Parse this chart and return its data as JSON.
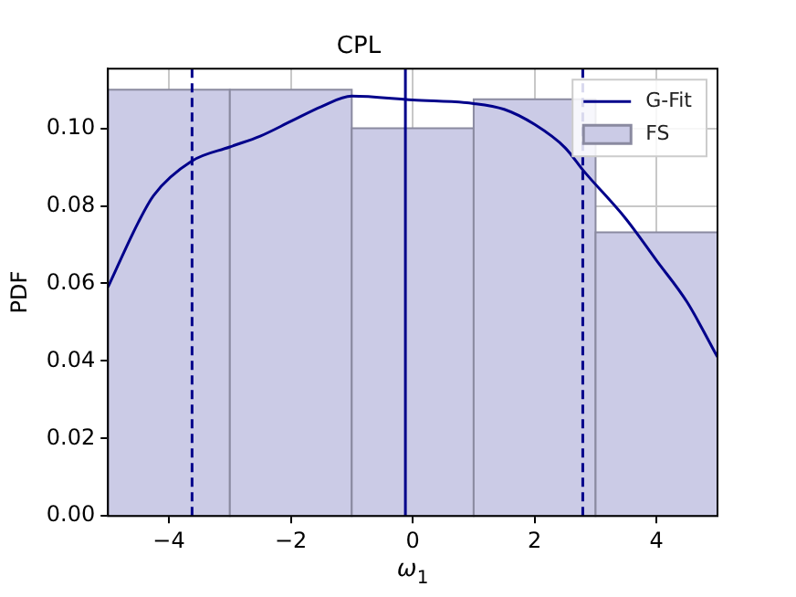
{
  "chart_data": {
    "type": "histogram",
    "title": "CPL",
    "xlabel": "ω$_{1}$",
    "ylabel": "PDF",
    "xlim": [
      -5,
      5
    ],
    "xticks": [
      -4,
      -2,
      0,
      2,
      4
    ],
    "ylim": [
      0,
      0.1154
    ],
    "yticks": [
      {
        "value": 0,
        "label": "0.00"
      },
      {
        "value": 0.02,
        "label": "0.02"
      },
      {
        "value": 0.04,
        "label": "0.04"
      },
      {
        "value": 0.06,
        "label": "0.06"
      },
      {
        "value": 0.08,
        "label": "0.08"
      },
      {
        "value": 0.1,
        "label": "0.10"
      }
    ],
    "grid": true,
    "legend": "top right",
    "series": [
      {
        "name": "FS",
        "color": "#cbcbe6",
        "bins": [
          -5,
          -3,
          -1,
          1,
          3,
          5
        ],
        "values": [
          0.11,
          0.11,
          0.1,
          0.1075,
          0.0732
        ]
      },
      {
        "name": "G-Fit",
        "type": "line",
        "color": "#00008b",
        "x": [
          -5,
          -4.5,
          -4.25,
          -3.62,
          -3,
          -2.5,
          -2,
          -1.5,
          -1,
          0,
          1,
          1.5,
          2,
          2.5,
          2.8,
          3.5,
          4,
          4.5,
          5
        ],
        "values": [
          0.059,
          0.0758,
          0.0827,
          0.0916,
          0.0952,
          0.098,
          0.1018,
          0.1056,
          0.1083,
          0.1073,
          0.1064,
          0.1049,
          0.101,
          0.095,
          0.0891,
          0.0766,
          0.0659,
          0.0552,
          0.041
        ]
      }
    ],
    "ref_lines": [
      {
        "axis": "x",
        "value": -3.62,
        "color": "#00008b",
        "line_style": "dashed"
      },
      {
        "axis": "x",
        "value": -0.12,
        "color": "#00008b",
        "line_style": "solid"
      },
      {
        "axis": "x",
        "value": 2.79,
        "color": "#00008b",
        "line_style": "dashed"
      }
    ]
  }
}
